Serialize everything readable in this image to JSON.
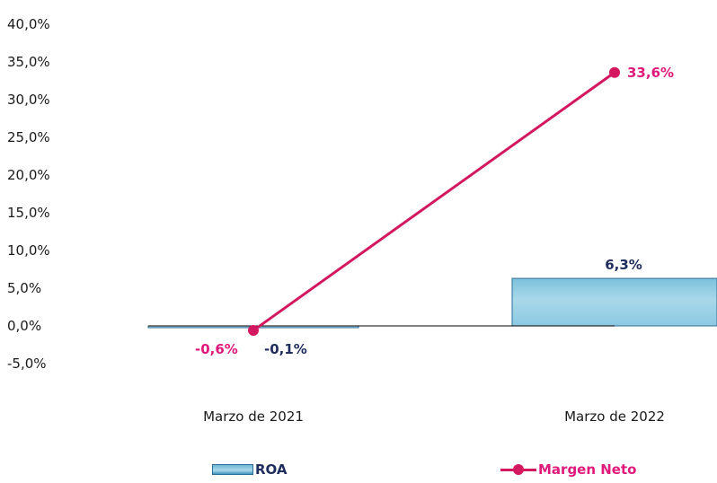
{
  "chart_data": {
    "type": "bar+line",
    "categories": [
      "Marzo de 2021",
      "Marzo de 2022"
    ],
    "series": [
      {
        "name": "ROA",
        "type": "bar",
        "values": [
          -0.1,
          6.3
        ],
        "labels": [
          "-0,1%",
          "6,3%"
        ],
        "color": "#a9d8ea"
      },
      {
        "name": "Margen Neto",
        "type": "line",
        "values": [
          -0.6,
          33.6
        ],
        "labels": [
          "-0,6%",
          "33,6%"
        ],
        "color": "#d3185f"
      }
    ],
    "ylim": [
      -5,
      40
    ],
    "yticks": [
      {
        "value": 40,
        "label": "40,0%"
      },
      {
        "value": 35,
        "label": "35,0%"
      },
      {
        "value": 30,
        "label": "30,0%"
      },
      {
        "value": 25,
        "label": "25,0%"
      },
      {
        "value": 20,
        "label": "20,0%"
      },
      {
        "value": 15,
        "label": "15,0%"
      },
      {
        "value": 10,
        "label": "10,0%"
      },
      {
        "value": 5,
        "label": "5,0%"
      },
      {
        "value": 0,
        "label": "0,0%"
      },
      {
        "value": -5,
        "label": "-5,0%"
      }
    ],
    "grid": false,
    "legend_position": "bottom"
  }
}
